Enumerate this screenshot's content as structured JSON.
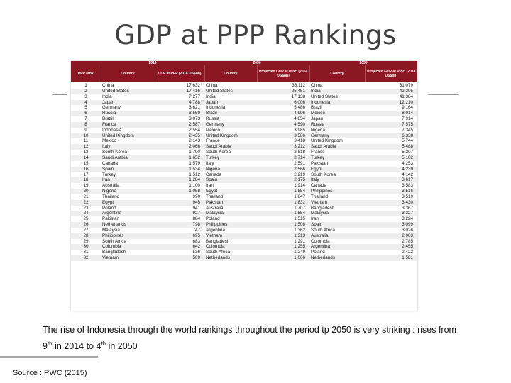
{
  "title": "GDP at PPP Rankings",
  "table": {
    "years": [
      "2014",
      "2030",
      "2050"
    ],
    "headers": {
      "rank": "PPP rank",
      "country": "Country",
      "gdp2014": "GDP at PPP (2014 US$bn)",
      "proj": "Projected GDP at PPP* (2014 US$bn)"
    },
    "rows": [
      [
        "1",
        "China",
        "17,632",
        "China",
        "36,112",
        "China",
        "61,079"
      ],
      [
        "2",
        "United States",
        "17,416",
        "United States",
        "25,451",
        "India",
        "42,205"
      ],
      [
        "3",
        "India",
        "7,277",
        "India",
        "17,138",
        "United States",
        "41,384"
      ],
      [
        "4",
        "Japan",
        "4,788",
        "Japan",
        "6,006",
        "Indonesia",
        "12,210"
      ],
      [
        "5",
        "Germany",
        "3,621",
        "Indonesia",
        "5,486",
        "Brazil",
        "9,164"
      ],
      [
        "6",
        "Russia",
        "3,559",
        "Brazil",
        "4,996",
        "Mexico",
        "8,014"
      ],
      [
        "7",
        "Brazil",
        "3,073",
        "Russia",
        "4,854",
        "Japan",
        "7,914"
      ],
      [
        "8",
        "France",
        "2,587",
        "Germany",
        "4,590",
        "Russia",
        "7,575"
      ],
      [
        "9",
        "Indonesia",
        "2,554",
        "Mexico",
        "3,985",
        "Nigeria",
        "7,345"
      ],
      [
        "10",
        "United Kingdom",
        "2,435",
        "United Kingdom",
        "3,586",
        "Germany",
        "6,338"
      ],
      [
        "11",
        "Mexico",
        "2,143",
        "France",
        "3,418",
        "United Kingdom",
        "5,744"
      ],
      [
        "12",
        "Italy",
        "2,066",
        "Saudi Arabia",
        "3,212",
        "Saudi Arabia",
        "5,488"
      ],
      [
        "13",
        "South Korea",
        "1,790",
        "South Korea",
        "2,818",
        "France",
        "5,207"
      ],
      [
        "14",
        "Saudi Arabia",
        "1,652",
        "Turkey",
        "2,714",
        "Turkey",
        "5,102"
      ],
      [
        "15",
        "Canada",
        "1,579",
        "Italy",
        "2,591",
        "Pakistan",
        "4,253"
      ],
      [
        "16",
        "Spain",
        "1,534",
        "Nigeria",
        "2,566",
        "Egypt",
        "4,239"
      ],
      [
        "17",
        "Turkey",
        "1,512",
        "Canada",
        "2,219",
        "South Korea",
        "4,142"
      ],
      [
        "18",
        "Iran",
        "1,284",
        "Spain",
        "2,175",
        "Italy",
        "3,617"
      ],
      [
        "19",
        "Australia",
        "1,100",
        "Iran",
        "1,914",
        "Canada",
        "3,583"
      ],
      [
        "20",
        "Nigeria",
        "1,058",
        "Egypt",
        "1,854",
        "Philippines",
        "3,516"
      ],
      [
        "21",
        "Thailand",
        "990",
        "Thailand",
        "1,847",
        "Thailand",
        "3,510"
      ],
      [
        "22",
        "Egypt",
        "945",
        "Pakistan",
        "1,832",
        "Vietnam",
        "3,430"
      ],
      [
        "23",
        "Poland",
        "941",
        "Australia",
        "1,707",
        "Bangladesh",
        "3,367"
      ],
      [
        "24",
        "Argentina",
        "927",
        "Malaysia",
        "1,554",
        "Malaysia",
        "3,327"
      ],
      [
        "25",
        "Pakistan",
        "884",
        "Poland",
        "1,515",
        "Iran",
        "3,224"
      ],
      [
        "26",
        "Netherlands",
        "798",
        "Philippines",
        "1,508",
        "Spain",
        "3,099"
      ],
      [
        "27",
        "Malaysia",
        "747",
        "Argentina",
        "1,362",
        "South Africa",
        "3,026"
      ],
      [
        "28",
        "Philippines",
        "695",
        "Vietnam",
        "1,313",
        "Australia",
        "2,903"
      ],
      [
        "29",
        "South Africa",
        "683",
        "Bangladesh",
        "1,291",
        "Colombia",
        "2,785"
      ],
      [
        "30",
        "Colombia",
        "642",
        "Colombia",
        "1,255",
        "Argentina",
        "2,455"
      ],
      [
        "31",
        "Bangladesh",
        "536",
        "South Africa",
        "1,249",
        "Poland",
        "2,422"
      ],
      [
        "32",
        "Vietnam",
        "509",
        "Netherlands",
        "1,066",
        "Netherlands",
        "1,581"
      ]
    ]
  },
  "caption": {
    "part1": "The rise of Indonesia through the world rankings throughout the period tp 2050 is very striking : rises from 9",
    "sup1": "th",
    "part2": " in 2014 to 4",
    "sup2": "th",
    "part3": " in 2050"
  },
  "source": "Source : PWC (2015)"
}
